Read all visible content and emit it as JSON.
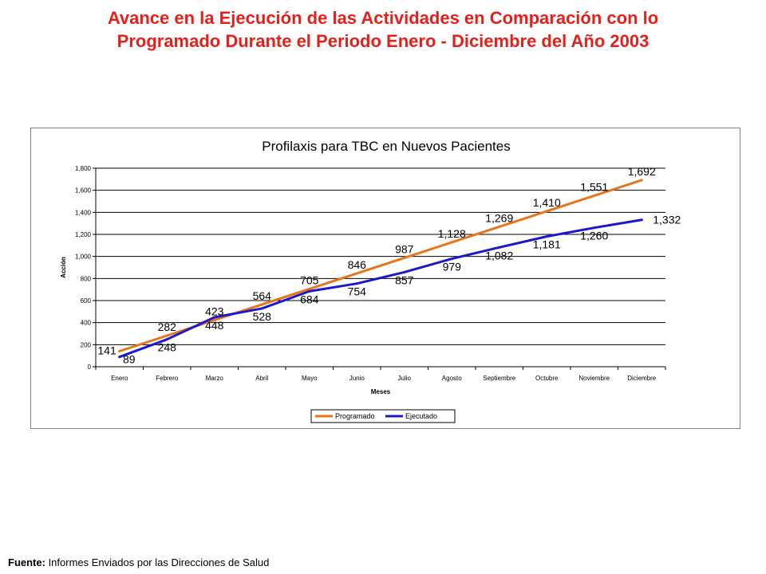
{
  "page": {
    "title_line1": "Avance en la Ejecución de las Actividades en Comparación con lo",
    "title_line2": "Programado Durante el Periodo Enero - Diciembre del Año 2003",
    "source_label": "Fuente:",
    "source_text": " Informes Enviados por las Direcciones de Salud"
  },
  "chart_data": {
    "type": "line",
    "title": "Profilaxis para TBC en Nuevos Pacientes",
    "xlabel": "Meses",
    "ylabel": "Acción",
    "categories": [
      "Enero",
      "Febrero",
      "Marzo",
      "Abril",
      "Mayo",
      "Junio",
      "Julio",
      "Agosto",
      "Septiembre",
      "Octubre",
      "Noviembre",
      "Diciembre"
    ],
    "ylim": [
      0,
      1800
    ],
    "yticks": [
      0,
      200,
      400,
      600,
      800,
      1000,
      1200,
      1400,
      1600,
      1800
    ],
    "ytick_labels": [
      "0",
      "200",
      "400",
      "600",
      "800",
      "1,000",
      "1,200",
      "1,400",
      "1,600",
      "1,800"
    ],
    "grid": true,
    "legend_position": "bottom",
    "series": [
      {
        "name": "Programado",
        "color": "#e8751a",
        "values": [
          141,
          282,
          423,
          564,
          705,
          846,
          987,
          1128,
          1269,
          1410,
          1551,
          1692
        ],
        "labels": [
          "141",
          "282",
          "423",
          "564",
          "705",
          "846",
          "987",
          "1,128",
          "1,269",
          "1,410",
          "1,551",
          "1,692"
        ]
      },
      {
        "name": "Ejecutado",
        "color": "#1a1acc",
        "values": [
          89,
          248,
          448,
          528,
          684,
          754,
          857,
          979,
          1082,
          1181,
          1260,
          1332
        ],
        "labels": [
          "89",
          "248",
          "448",
          "528",
          "684",
          "754",
          "857",
          "979",
          "1,082",
          "1,181",
          "1,260",
          "1,332"
        ]
      }
    ]
  }
}
